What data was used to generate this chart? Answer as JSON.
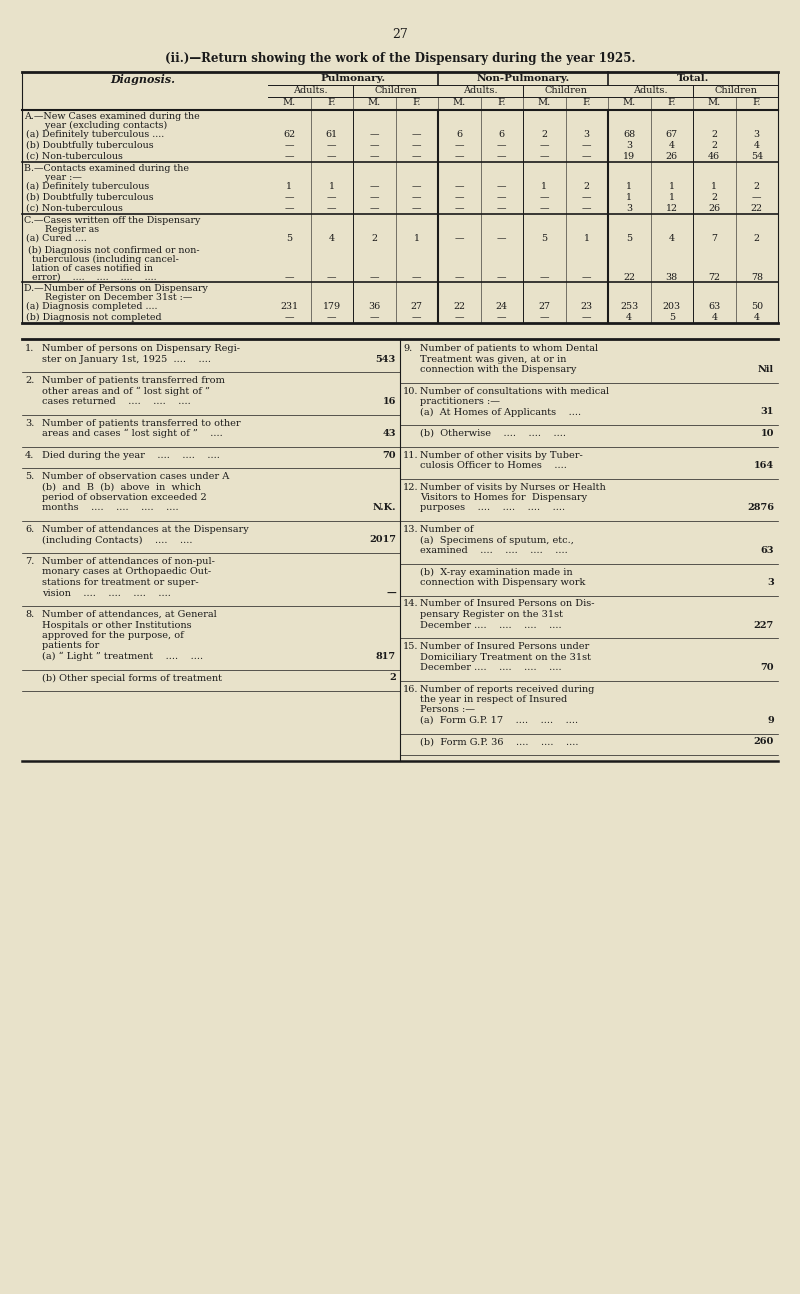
{
  "page_number": "27",
  "title": "(ii.)—Return showing the work of the Dispensary during the year 1925.",
  "bg_color": "#e8e2ca",
  "text_color": "#1a1a1a",
  "section_A_rows": [
    [
      "(a) Definitely tuberculous ....",
      "62",
      "61",
      "—",
      "—",
      "6",
      "6",
      "2",
      "3",
      "68",
      "67",
      "2",
      "3"
    ],
    [
      "(b) Doubtfully tuberculous",
      "—",
      "—",
      "—",
      "—",
      "—",
      "—",
      "—",
      "—",
      "3",
      "4",
      "2",
      "4"
    ],
    [
      "(c) Non-tuberculous",
      "—",
      "—",
      "—",
      "—",
      "—",
      "—",
      "—",
      "—",
      "19",
      "26",
      "46",
      "54"
    ]
  ],
  "section_B_rows": [
    [
      "(a) Definitely tuberculous",
      "1",
      "1",
      "—",
      "—",
      "—",
      "—",
      "1",
      "2",
      "1",
      "1",
      "1",
      "2"
    ],
    [
      "(b) Doubtfully tuberculous",
      "—",
      "—",
      "—",
      "—",
      "—",
      "—",
      "—",
      "—",
      "1",
      "1",
      "2",
      "—"
    ],
    [
      "(c) Non-tuberculous",
      "—",
      "—",
      "—",
      "—",
      "—",
      "—",
      "—",
      "—",
      "3",
      "12",
      "26",
      "22"
    ]
  ],
  "section_C_cured": [
    "5",
    "4",
    "2",
    "1",
    "—",
    "—",
    "5",
    "1",
    "5",
    "4",
    "7",
    "2"
  ],
  "section_C_b_vals": [
    "—",
    "—",
    "—",
    "—",
    "—",
    "—",
    "—",
    "—",
    "22",
    "38",
    "72",
    "78"
  ],
  "section_D_rows": [
    [
      "(a) Diagnosis completed ....",
      "231",
      "179",
      "36",
      "27",
      "22",
      "24",
      "27",
      "23",
      "253",
      "203",
      "63",
      "50"
    ],
    [
      "(b) Diagnosis not completed",
      "—",
      "—",
      "—",
      "—",
      "—",
      "—",
      "—",
      "—",
      "4",
      "5",
      "4",
      "4"
    ]
  ],
  "lower_items_left": [
    {
      "num": "1.",
      "lines": [
        "Number of persons on Dispensary Regi-",
        "ster on January 1st, 1925  ....    ...."
      ],
      "value": "543"
    },
    {
      "num": "2.",
      "lines": [
        "Number of patients transferred from",
        "other areas and of “ lost sight of ”",
        "cases returned    ....    ....    ...."
      ],
      "value": "16"
    },
    {
      "num": "3.",
      "lines": [
        "Number of patients transferred to other",
        "areas and cases “ lost sight of ”    ...."
      ],
      "value": "43"
    },
    {
      "num": "4.",
      "lines": [
        "Died during the year    ....    ....    ...."
      ],
      "value": "70"
    },
    {
      "num": "5.",
      "lines": [
        "Number of observation cases under A",
        "(b)  and  B  (b)  above  in  which",
        "period of observation exceeded 2",
        "months    ....    ....    ....    ...."
      ],
      "value": "N.K."
    },
    {
      "num": "6.",
      "lines": [
        "Number of attendances at the Dispensary",
        "(including Contacts)    ....    ...."
      ],
      "value": "2017"
    },
    {
      "num": "7.",
      "lines": [
        "Number of attendances of non-pul-",
        "monary cases at Orthopaedic Out-",
        "stations for treatment or super-",
        "vision    ....    ....    ....    ...."
      ],
      "value": "—"
    },
    {
      "num": "8.",
      "lines": [
        "Number of attendances, at General",
        "Hospitals or other Institutions",
        "approved for the purpose, of",
        "patients for",
        "(a) “ Light ” treatment    ....    ...."
      ],
      "value": "817"
    },
    {
      "num": "",
      "lines": [
        "(b) Other special forms of treatment"
      ],
      "value": "2"
    }
  ],
  "lower_items_right": [
    {
      "num": "9.",
      "lines": [
        "Number of patients to whom Dental",
        "Treatment was given, at or in",
        "connection with the Dispensary"
      ],
      "value": "Nil"
    },
    {
      "num": "10.",
      "lines": [
        "Number of consultations with medical",
        "practitioners :—",
        "(a)  At Homes of Applicants    ...."
      ],
      "value": "31"
    },
    {
      "num": "",
      "lines": [
        "(b)  Otherwise    ....    ....    ...."
      ],
      "value": "10"
    },
    {
      "num": "11.",
      "lines": [
        "Number of other visits by Tuber-",
        "culosis Officer to Homes    ...."
      ],
      "value": "164"
    },
    {
      "num": "12.",
      "lines": [
        "Number of visits by Nurses or Health",
        "Visitors to Homes for  Dispensary",
        "purposes    ....    ....    ....    ...."
      ],
      "value": "2876"
    },
    {
      "num": "13.",
      "lines": [
        "Number of",
        "(a)  Specimens of sputum, etc.,",
        "examined    ....    ....    ....    ...."
      ],
      "value": "63"
    },
    {
      "num": "",
      "lines": [
        "(b)  X-ray examination made in",
        "connection with Dispensary work"
      ],
      "value": "3"
    },
    {
      "num": "14.",
      "lines": [
        "Number of Insured Persons on Dis-",
        "pensary Register on the 31st",
        "December ....    ....    ....    ...."
      ],
      "value": "227"
    },
    {
      "num": "15.",
      "lines": [
        "Number of Insured Persons under",
        "Domiciliary Treatment on the 31st",
        "December ....    ....    ....    ...."
      ],
      "value": "70"
    },
    {
      "num": "16.",
      "lines": [
        "Number of reports received during",
        "the year in respect of Insured",
        "Persons :—",
        "(a)  Form G.P. 17    ....    ....    ...."
      ],
      "value": "9"
    },
    {
      "num": "",
      "lines": [
        "(b)  Form G.P. 36    ....    ....    ...."
      ],
      "value": "260"
    }
  ]
}
